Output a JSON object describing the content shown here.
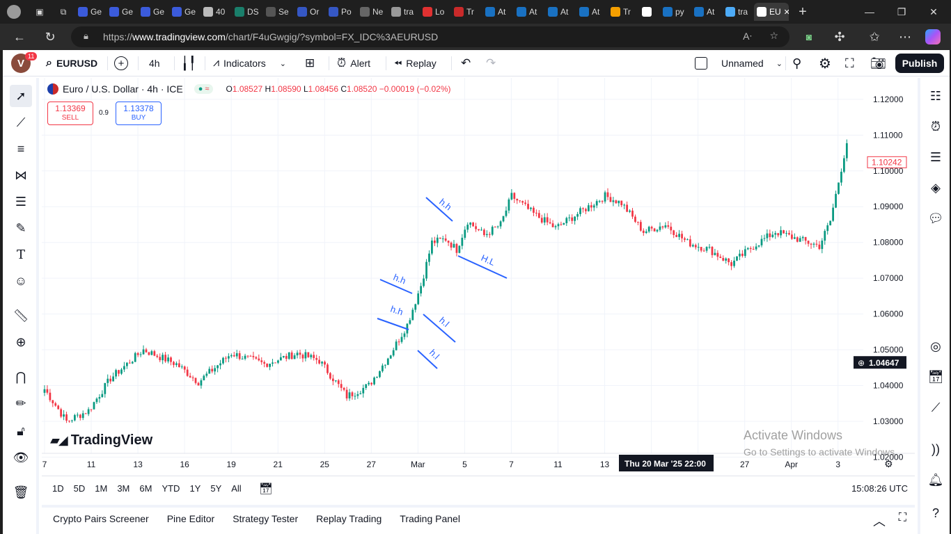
{
  "browser": {
    "tabs": [
      {
        "label": "Ge",
        "color": "#3b5bdb"
      },
      {
        "label": "Ge",
        "color": "#3b5bdb"
      },
      {
        "label": "Ge",
        "color": "#3b5bdb"
      },
      {
        "label": "Ge",
        "color": "#3b5bdb"
      },
      {
        "label": "40",
        "color": "#bbbbbb"
      },
      {
        "label": "DS",
        "color": "#1a7f6b"
      },
      {
        "label": "Se",
        "color": "#555555"
      },
      {
        "label": "Or",
        "color": "#3557c4"
      },
      {
        "label": "Po",
        "color": "#3557c4"
      },
      {
        "label": "Ne",
        "color": "#666666"
      },
      {
        "label": "tra",
        "color": "#999999"
      },
      {
        "label": "Lo",
        "color": "#e03131"
      },
      {
        "label": "Tr",
        "color": "#c92a2a"
      },
      {
        "label": "At",
        "color": "#1971c2"
      },
      {
        "label": "At",
        "color": "#1971c2"
      },
      {
        "label": "At",
        "color": "#1971c2"
      },
      {
        "label": "At",
        "color": "#1971c2"
      },
      {
        "label": "Tr",
        "color": "#f59f00"
      },
      {
        "label": "",
        "color": "#ffffff"
      },
      {
        "label": "py",
        "color": "#1971c2"
      },
      {
        "label": "At",
        "color": "#1971c2"
      },
      {
        "label": "tra",
        "color": "#4dabf7"
      },
      {
        "label": "EU",
        "color": "#ffffff",
        "active": true
      }
    ],
    "url_prefix": "https://",
    "url_domain": "www.tradingview.com",
    "url_path": "/chart/F4uGwgig/?symbol=FX_IDC%3AEURUSD"
  },
  "toolbar": {
    "avatar_letter": "V",
    "notification_count": "11",
    "symbol": "EURUSD",
    "interval": "4h",
    "indicators_label": "Indicators",
    "alert_label": "Alert",
    "replay_label": "Replay",
    "layout_name": "Unnamed",
    "publish_label": "Publish"
  },
  "legend": {
    "title": "Euro / U.S. Dollar · 4h · ICE",
    "open": "1.08527",
    "high": "1.08590",
    "low": "1.08456",
    "close": "1.08520",
    "change": "−0.00019 (−0.02%)",
    "sell_price": "1.13369",
    "sell_label": "SELL",
    "spread": "0.9",
    "buy_price": "1.13378",
    "buy_label": "BUY"
  },
  "chart_data": {
    "type": "candlestick",
    "title": "Euro / U.S. Dollar · 4h · ICE",
    "y_ticks": [
      "1.12000",
      "1.11000",
      "1.10000",
      "1.09000",
      "1.08000",
      "1.07000",
      "1.06000",
      "1.05000",
      "1.04000",
      "1.03000",
      "1.02000"
    ],
    "ylim": [
      1.0195,
      1.1225
    ],
    "x_ticks": [
      "7",
      "11",
      "13",
      "16",
      "19",
      "21",
      "25",
      "27",
      "Mar",
      "5",
      "7",
      "11",
      "13",
      "16",
      "",
      "27",
      "Apr",
      "3"
    ],
    "current_price": "1.10242",
    "crosshair_price": "1.04647",
    "crosshair_time": "Thu 20 Mar '25   22:00",
    "annotations": [
      {
        "text": "h.h"
      },
      {
        "text": "h.h"
      },
      {
        "text": "h.h"
      },
      {
        "text": "H.L"
      },
      {
        "text": "h.l"
      },
      {
        "text": "h.l"
      }
    ],
    "anchor_points": [
      [
        0,
        1.039
      ],
      [
        8,
        1.03
      ],
      [
        16,
        1.033
      ],
      [
        24,
        1.042
      ],
      [
        36,
        1.05
      ],
      [
        48,
        1.046
      ],
      [
        56,
        1.041
      ],
      [
        68,
        1.049
      ],
      [
        80,
        1.046
      ],
      [
        92,
        1.049
      ],
      [
        100,
        1.047
      ],
      [
        110,
        1.037
      ],
      [
        118,
        1.04
      ],
      [
        126,
        1.049
      ],
      [
        132,
        1.057
      ],
      [
        137,
        1.068
      ],
      [
        141,
        1.08
      ],
      [
        146,
        1.081
      ],
      [
        150,
        1.078
      ],
      [
        154,
        1.086
      ],
      [
        160,
        1.082
      ],
      [
        166,
        1.085
      ],
      [
        170,
        1.093
      ],
      [
        178,
        1.088
      ],
      [
        186,
        1.084
      ],
      [
        196,
        1.089
      ],
      [
        204,
        1.093
      ],
      [
        210,
        1.091
      ],
      [
        218,
        1.083
      ],
      [
        226,
        1.085
      ],
      [
        234,
        1.08
      ],
      [
        242,
        1.078
      ],
      [
        250,
        1.074
      ],
      [
        258,
        1.079
      ],
      [
        266,
        1.083
      ],
      [
        274,
        1.081
      ],
      [
        282,
        1.079
      ],
      [
        286,
        1.086
      ],
      [
        289,
        1.097
      ],
      [
        292,
        1.108
      ]
    ]
  },
  "watermark": "TradingView",
  "timeframes": [
    "1D",
    "5D",
    "1M",
    "3M",
    "6M",
    "YTD",
    "1Y",
    "5Y",
    "All"
  ],
  "clock": "15:08:26 UTC",
  "panels": [
    "Crypto Pairs Screener",
    "Pine Editor",
    "Strategy Tester",
    "Replay Trading",
    "Trading Panel"
  ],
  "windows_notice": {
    "line1": "Activate Windows",
    "line2": "Go to Settings to activate Windows."
  }
}
